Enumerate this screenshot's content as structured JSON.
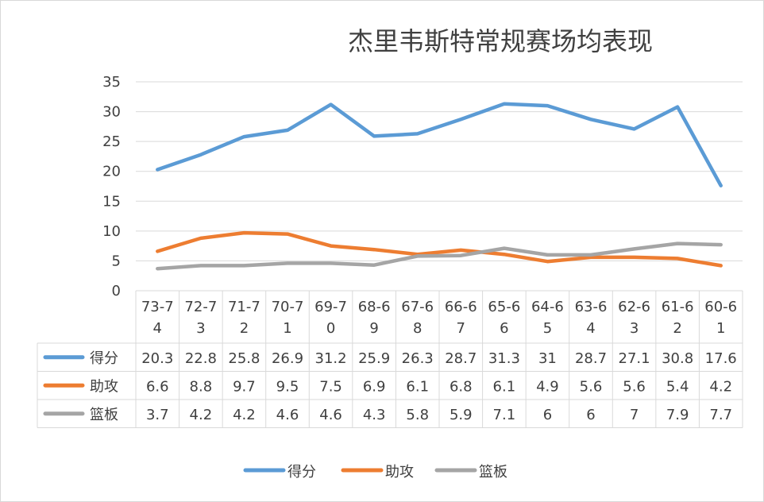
{
  "chart_data": {
    "type": "line",
    "title": "杰里韦斯特常规赛场均表现",
    "categories": [
      "73-74",
      "72-73",
      "71-72",
      "70-71",
      "69-70",
      "68-69",
      "67-68",
      "66-67",
      "65-66",
      "64-65",
      "63-64",
      "62-63",
      "61-62",
      "60-61"
    ],
    "category_lines": [
      [
        "73-7",
        "4"
      ],
      [
        "72-7",
        "3"
      ],
      [
        "71-7",
        "2"
      ],
      [
        "70-7",
        "1"
      ],
      [
        "69-7",
        "0"
      ],
      [
        "68-6",
        "9"
      ],
      [
        "67-6",
        "8"
      ],
      [
        "66-6",
        "7"
      ],
      [
        "65-6",
        "6"
      ],
      [
        "64-6",
        "5"
      ],
      [
        "63-6",
        "4"
      ],
      [
        "62-6",
        "3"
      ],
      [
        "61-6",
        "2"
      ],
      [
        "60-6",
        "1"
      ]
    ],
    "ylim": [
      0,
      35
    ],
    "yticks": [
      0,
      5,
      10,
      15,
      20,
      25,
      30,
      35
    ],
    "grid": true,
    "legend_position": "bottom",
    "data_table": true,
    "series": [
      {
        "name": "得分",
        "color": "#5b9bd5",
        "values": [
          20.3,
          22.8,
          25.8,
          26.9,
          31.2,
          25.9,
          26.3,
          28.7,
          31.3,
          31,
          28.7,
          27.1,
          30.8,
          17.6
        ]
      },
      {
        "name": "助攻",
        "color": "#ed7d31",
        "values": [
          6.6,
          8.8,
          9.7,
          9.5,
          7.5,
          6.9,
          6.1,
          6.8,
          6.1,
          4.9,
          5.6,
          5.6,
          5.4,
          4.2
        ]
      },
      {
        "name": "篮板",
        "color": "#a5a5a5",
        "values": [
          3.7,
          4.2,
          4.2,
          4.6,
          4.6,
          4.3,
          5.8,
          5.9,
          7.1,
          6,
          6,
          7,
          7.9,
          7.7
        ]
      }
    ]
  }
}
